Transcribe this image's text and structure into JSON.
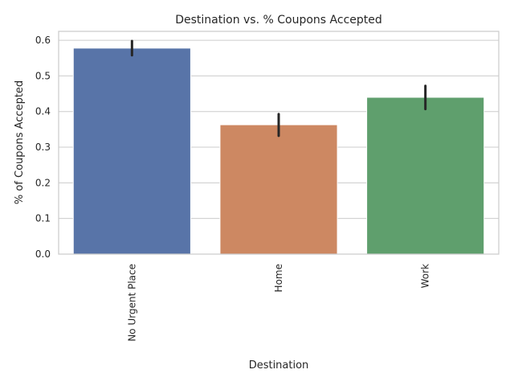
{
  "chart_data": {
    "type": "bar",
    "title": "Destination vs. % Coupons Accepted",
    "xlabel": "Destination",
    "ylabel": "% of Coupons Accepted",
    "categories": [
      "No Urgent Place",
      "Home",
      "Work"
    ],
    "values": [
      0.578,
      0.363,
      0.44
    ],
    "ci_low": [
      0.558,
      0.332,
      0.407
    ],
    "ci_high": [
      0.598,
      0.393,
      0.472
    ],
    "colors": [
      "#5874a8",
      "#cd8862",
      "#5f9f6d"
    ],
    "ylim": [
      0,
      0.625
    ],
    "yticks": [
      0.0,
      0.1,
      0.2,
      0.3,
      0.4,
      0.5,
      0.6
    ],
    "ytick_labels": [
      "0.0",
      "0.1",
      "0.2",
      "0.3",
      "0.4",
      "0.5",
      "0.6"
    ],
    "grid": true,
    "legend": "none"
  }
}
